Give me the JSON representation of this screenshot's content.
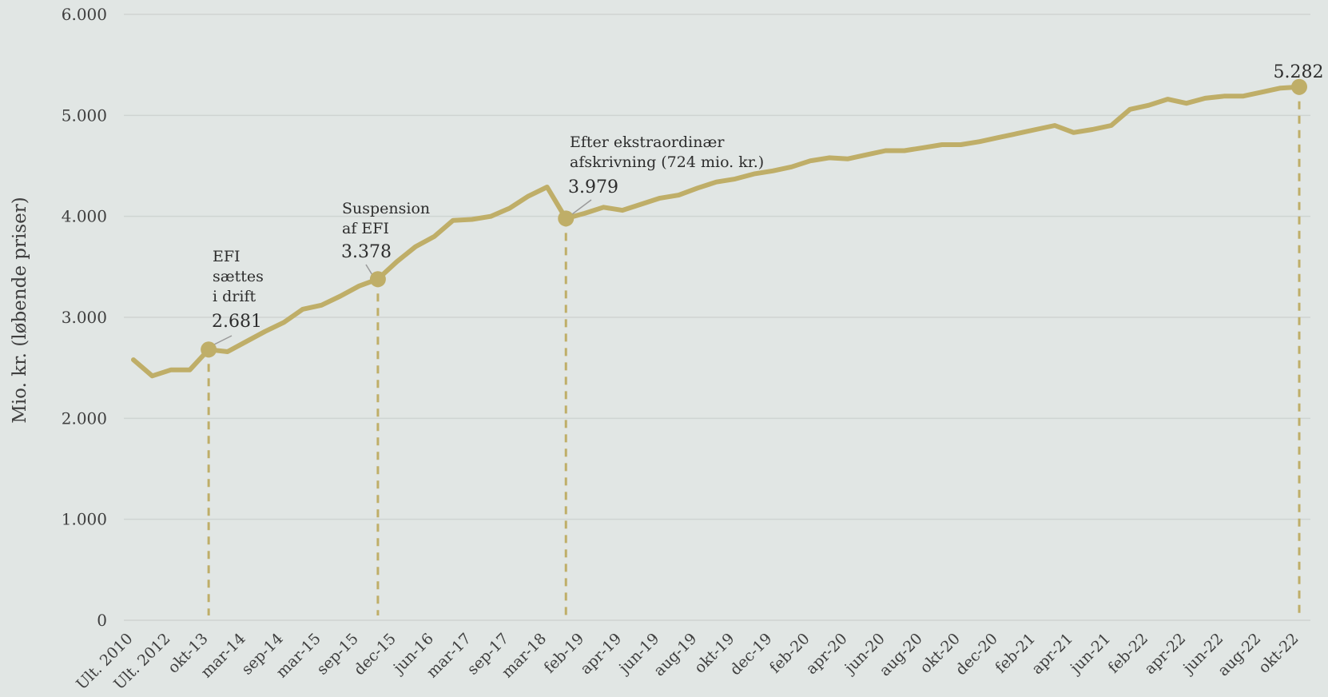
{
  "colors": {
    "background": "#e1e6e4",
    "line": "#bfae68",
    "grid": "#cfd4d2",
    "text": "#3f3f3f"
  },
  "chart_data": {
    "type": "line",
    "title": "",
    "xlabel": "",
    "ylabel": "Mio. kr. (løbende priser)",
    "ylim": [
      0,
      6000
    ],
    "yticks": [
      0,
      1000,
      2000,
      3000,
      4000,
      5000,
      6000
    ],
    "ytick_labels": [
      "0",
      "1.000",
      "2.000",
      "3.000",
      "4.000",
      "5.000",
      "6.000"
    ],
    "grid": true,
    "x_tick_labels": [
      "Ult. 2010",
      "Ult. 2012",
      "okt-13",
      "mar-14",
      "sep-14",
      "mar-15",
      "sep-15",
      "dec-15",
      "jun-16",
      "mar-17",
      "sep-17",
      "mar-18",
      "feb-19",
      "apr-19",
      "jun-19",
      "aug-19",
      "okt-19",
      "dec-19",
      "feb-20",
      "apr-20",
      "jun-20",
      "aug-20",
      "okt-20",
      "dec-20",
      "feb-21",
      "apr-21",
      "jun-21",
      "feb-22",
      "apr-22",
      "jun-22",
      "aug-22",
      "okt-22"
    ],
    "series": [
      {
        "values": [
          2580,
          2420,
          2480,
          2480,
          2681,
          2660,
          2760,
          2860,
          2950,
          3080,
          3120,
          3210,
          3310,
          3378,
          3550,
          3700,
          3800,
          3960,
          3970,
          4000,
          4080,
          4200,
          4290,
          3979,
          4030,
          4090,
          4060,
          4120,
          4180,
          4210,
          4280,
          4340,
          4370,
          4420,
          4450,
          4490,
          4550,
          4580,
          4570,
          4610,
          4650,
          4650,
          4680,
          4710,
          4710,
          4740,
          4780,
          4820,
          4860,
          4900,
          4830,
          4860,
          4900,
          5060,
          5100,
          5160,
          5120,
          5170,
          5190,
          5190,
          5230,
          5270,
          5282
        ]
      }
    ],
    "markers": [
      {
        "index": 4,
        "lines": [
          "EFI",
          "sættes",
          "i drift"
        ],
        "value_label": "2.681"
      },
      {
        "index": 13,
        "lines": [
          "Suspension",
          "af EFI"
        ],
        "value_label": "3.378"
      },
      {
        "index": 23,
        "lines": [
          "Efter ekstraordinær",
          "afskrivning (724 mio. kr.)"
        ],
        "value_label": "3.979"
      },
      {
        "index": 62,
        "lines": [],
        "value_label": "5.282"
      }
    ]
  }
}
